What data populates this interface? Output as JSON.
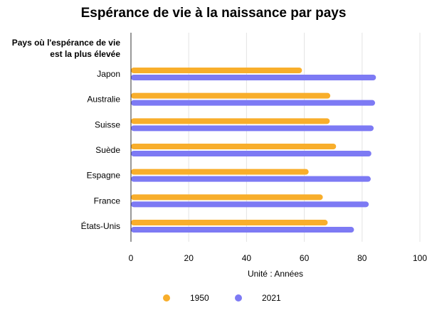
{
  "chart_data": {
    "type": "bar",
    "orientation": "horizontal",
    "title": "Espérance de vie à la naissance par pays",
    "ylabel": "Pays où l'espérance de vie est la plus élevée",
    "xlabel": "Unité : Années",
    "categories": [
      "Japon",
      "Australie",
      "Suisse",
      "Suède",
      "Espagne",
      "France",
      "États-Unis"
    ],
    "series": [
      {
        "name": "1950",
        "color": "#f8ae2b",
        "values": [
          59.2,
          69.0,
          68.8,
          71.0,
          61.5,
          66.4,
          68.1
        ]
      },
      {
        "name": "2021",
        "color": "#7d7af4",
        "values": [
          84.8,
          84.5,
          84.0,
          83.2,
          83.0,
          82.3,
          77.2
        ]
      }
    ],
    "xlim": [
      0,
      100
    ],
    "xticks": [
      0,
      20,
      40,
      60,
      80,
      100
    ],
    "grid": true,
    "legend": "bottom"
  }
}
